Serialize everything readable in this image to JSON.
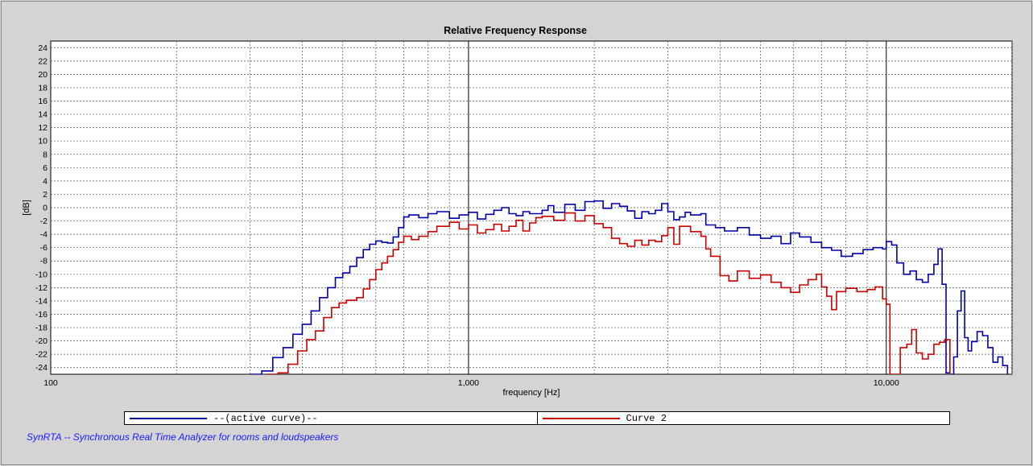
{
  "chart_data": {
    "type": "line",
    "title": "Relative Frequency Response",
    "xlabel": "frequency [Hz]",
    "ylabel": "[dB]",
    "x_scale": "log",
    "xlim": [
      100,
      20000
    ],
    "ylim": [
      -25,
      25
    ],
    "grid": true,
    "x_tick_labels": [
      {
        "value": 100,
        "label": "100"
      },
      {
        "value": 1000,
        "label": "1,000"
      },
      {
        "value": 10000,
        "label": "10,000"
      }
    ],
    "y_ticks": [
      24,
      22,
      20,
      18,
      16,
      14,
      12,
      10,
      8,
      6,
      4,
      2,
      0,
      -2,
      -4,
      -6,
      -8,
      -10,
      -12,
      -14,
      -16,
      -18,
      -20,
      -22,
      -24
    ],
    "legend_placement": "bottom",
    "series": [
      {
        "name": "--(active curve)--",
        "color": "#0000aa",
        "points": [
          [
            300,
            -25
          ],
          [
            320,
            -24.5
          ],
          [
            340,
            -22.5
          ],
          [
            360,
            -21
          ],
          [
            380,
            -19
          ],
          [
            400,
            -17.5
          ],
          [
            420,
            -15.5
          ],
          [
            440,
            -13.5
          ],
          [
            460,
            -12
          ],
          [
            480,
            -10.5
          ],
          [
            500,
            -9.8
          ],
          [
            520,
            -8.8
          ],
          [
            540,
            -7.5
          ],
          [
            560,
            -6.3
          ],
          [
            580,
            -5.5
          ],
          [
            600,
            -5
          ],
          [
            620,
            -5.2
          ],
          [
            640,
            -5.3
          ],
          [
            660,
            -4.4
          ],
          [
            680,
            -3
          ],
          [
            700,
            -1.4
          ],
          [
            720,
            -1.1
          ],
          [
            760,
            -1.5
          ],
          [
            800,
            -0.9
          ],
          [
            840,
            -0.6
          ],
          [
            900,
            -1.6
          ],
          [
            950,
            -1.1
          ],
          [
            1000,
            -0.7
          ],
          [
            1050,
            -1.7
          ],
          [
            1100,
            -1.0
          ],
          [
            1150,
            -0.4
          ],
          [
            1200,
            0
          ],
          [
            1250,
            -0.9
          ],
          [
            1300,
            -1.2
          ],
          [
            1350,
            -0.6
          ],
          [
            1400,
            -0.9
          ],
          [
            1500,
            -0.4
          ],
          [
            1550,
            0.3
          ],
          [
            1600,
            -0.7
          ],
          [
            1700,
            0.5
          ],
          [
            1800,
            -0.4
          ],
          [
            1900,
            0.9
          ],
          [
            2000,
            1.0
          ],
          [
            2100,
            -0.1
          ],
          [
            2200,
            0.6
          ],
          [
            2300,
            0.2
          ],
          [
            2400,
            -0.5
          ],
          [
            2500,
            -1.6
          ],
          [
            2600,
            -0.6
          ],
          [
            2700,
            -0.9
          ],
          [
            2800,
            -0.4
          ],
          [
            2900,
            0.6
          ],
          [
            3000,
            -0.6
          ],
          [
            3100,
            -1.8
          ],
          [
            3200,
            -1.4
          ],
          [
            3300,
            -0.7
          ],
          [
            3400,
            -1.1
          ],
          [
            3600,
            -0.9
          ],
          [
            3700,
            -2.6
          ],
          [
            3900,
            -3.0
          ],
          [
            4100,
            -3.5
          ],
          [
            4400,
            -3.0
          ],
          [
            4700,
            -4.1
          ],
          [
            5000,
            -4.6
          ],
          [
            5300,
            -4.3
          ],
          [
            5600,
            -5.4
          ],
          [
            5900,
            -3.8
          ],
          [
            6200,
            -4.4
          ],
          [
            6600,
            -5.2
          ],
          [
            7000,
            -6.0
          ],
          [
            7400,
            -6.4
          ],
          [
            7800,
            -7.3
          ],
          [
            8300,
            -6.9
          ],
          [
            8800,
            -6.3
          ],
          [
            9300,
            -6.0
          ],
          [
            9800,
            -6.2
          ],
          [
            10000,
            -5.1
          ],
          [
            10300,
            -5.6
          ],
          [
            10600,
            -8.3
          ],
          [
            11000,
            -10.0
          ],
          [
            11400,
            -9.5
          ],
          [
            11800,
            -10.8
          ],
          [
            12200,
            -11.2
          ],
          [
            12600,
            -10.0
          ],
          [
            13000,
            -8.5
          ],
          [
            13300,
            -6.2
          ],
          [
            13600,
            -11.5
          ],
          [
            13900,
            -24.8
          ],
          [
            14200,
            -25
          ],
          [
            14500,
            -22.4
          ],
          [
            14800,
            -15.5
          ],
          [
            15100,
            -12.5
          ],
          [
            15400,
            -19.5
          ],
          [
            15700,
            -21.5
          ],
          [
            16000,
            -20.1
          ],
          [
            16500,
            -18.6
          ],
          [
            17000,
            -19.2
          ],
          [
            17500,
            -21.0
          ],
          [
            18000,
            -23.2
          ],
          [
            18500,
            -22.4
          ],
          [
            19000,
            -23.7
          ],
          [
            19500,
            -25
          ]
        ]
      },
      {
        "name": "Curve 2",
        "color": "#cc0000",
        "points": [
          [
            330,
            -25
          ],
          [
            350,
            -24.8
          ],
          [
            370,
            -23.5
          ],
          [
            390,
            -21.5
          ],
          [
            410,
            -19.8
          ],
          [
            430,
            -18.5
          ],
          [
            450,
            -16.5
          ],
          [
            470,
            -15
          ],
          [
            490,
            -14.3
          ],
          [
            510,
            -13.9
          ],
          [
            540,
            -13.5
          ],
          [
            560,
            -12.2
          ],
          [
            580,
            -10.8
          ],
          [
            600,
            -9.3
          ],
          [
            620,
            -8.3
          ],
          [
            640,
            -7.3
          ],
          [
            660,
            -6.3
          ],
          [
            680,
            -5.2
          ],
          [
            700,
            -4.3
          ],
          [
            730,
            -4.8
          ],
          [
            760,
            -4.3
          ],
          [
            800,
            -3.6
          ],
          [
            840,
            -2.8
          ],
          [
            900,
            -2.2
          ],
          [
            950,
            -3.2
          ],
          [
            1000,
            -2.6
          ],
          [
            1050,
            -3.8
          ],
          [
            1100,
            -3.3
          ],
          [
            1150,
            -2.5
          ],
          [
            1200,
            -3.5
          ],
          [
            1250,
            -2.8
          ],
          [
            1300,
            -1.9
          ],
          [
            1350,
            -3.5
          ],
          [
            1400,
            -2.3
          ],
          [
            1450,
            -1.5
          ],
          [
            1500,
            -1.3
          ],
          [
            1600,
            -1.9
          ],
          [
            1700,
            -0.8
          ],
          [
            1800,
            -2.0
          ],
          [
            1900,
            -1.2
          ],
          [
            2000,
            -2.4
          ],
          [
            2100,
            -3.0
          ],
          [
            2200,
            -4.6
          ],
          [
            2300,
            -5.4
          ],
          [
            2400,
            -5.8
          ],
          [
            2500,
            -4.9
          ],
          [
            2600,
            -5.6
          ],
          [
            2700,
            -4.9
          ],
          [
            2800,
            -5.1
          ],
          [
            2900,
            -4.2
          ],
          [
            3000,
            -3.0
          ],
          [
            3100,
            -5.5
          ],
          [
            3200,
            -2.8
          ],
          [
            3400,
            -3.6
          ],
          [
            3600,
            -4.3
          ],
          [
            3700,
            -6.2
          ],
          [
            3800,
            -7.3
          ],
          [
            4000,
            -10.2
          ],
          [
            4200,
            -11.0
          ],
          [
            4400,
            -9.5
          ],
          [
            4700,
            -10.6
          ],
          [
            5000,
            -10.1
          ],
          [
            5300,
            -11.2
          ],
          [
            5600,
            -12.0
          ],
          [
            5900,
            -12.7
          ],
          [
            6200,
            -11.6
          ],
          [
            6500,
            -10.8
          ],
          [
            6800,
            -10.0
          ],
          [
            7000,
            -11.9
          ],
          [
            7200,
            -13.3
          ],
          [
            7400,
            -15.3
          ],
          [
            7600,
            -12.6
          ],
          [
            8000,
            -12.1
          ],
          [
            8500,
            -12.6
          ],
          [
            9000,
            -12.3
          ],
          [
            9400,
            -11.9
          ],
          [
            9800,
            -13.7
          ],
          [
            10000,
            -14.5
          ],
          [
            10200,
            -25
          ],
          [
            10500,
            -25
          ],
          [
            10800,
            -21.0
          ],
          [
            11200,
            -20.5
          ],
          [
            11500,
            -18.3
          ],
          [
            11800,
            -21.8
          ],
          [
            12200,
            -22.7
          ],
          [
            12600,
            -22.0
          ],
          [
            13000,
            -20.5
          ],
          [
            13400,
            -20.2
          ],
          [
            13800,
            -19.8
          ],
          [
            14200,
            -25
          ]
        ]
      }
    ]
  },
  "footer": {
    "text": "SynRTA -- Synchronous Real Time Analyzer for rooms and loudspeakers"
  }
}
